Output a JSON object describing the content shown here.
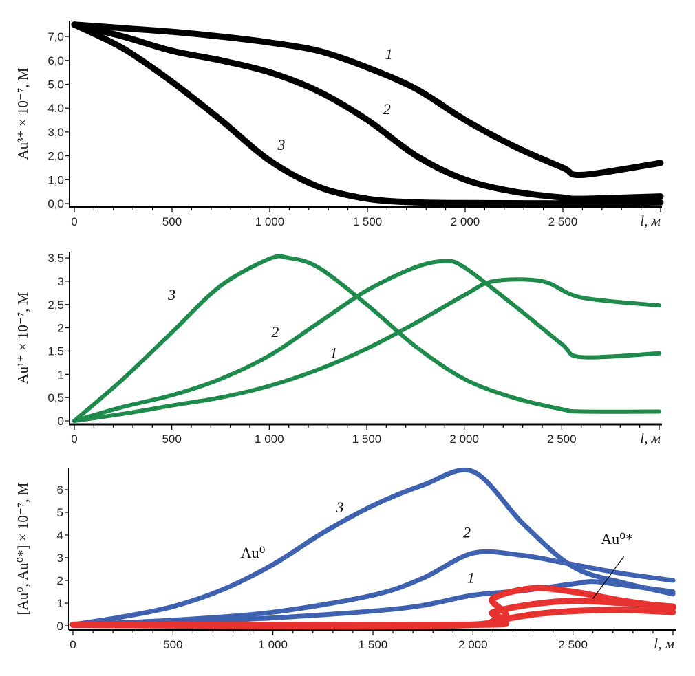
{
  "chart_data": [
    {
      "type": "line",
      "ylabel": "Au³⁺ × 10⁻⁷, М",
      "xlabel": "l, м",
      "xlim": [
        0,
        3000
      ],
      "ylim": [
        0,
        7.7
      ],
      "xticks": [
        0,
        500,
        1000,
        1500,
        2000,
        2500
      ],
      "xtick_labels": [
        "0",
        "500",
        "1 000",
        "1 500",
        "2 000",
        "2 500"
      ],
      "yticks": [
        0,
        1,
        2,
        3,
        4,
        5,
        6,
        7
      ],
      "ytick_labels": [
        "0,0",
        "1,0",
        "2,0",
        "3,0",
        "4,0",
        "5,0",
        "6,0",
        "7,0"
      ],
      "color": "#000000",
      "series": [
        {
          "label": "1",
          "points": [
            [
              0,
              7.5
            ],
            [
              250,
              7.35
            ],
            [
              500,
              7.2
            ],
            [
              750,
              7.0
            ],
            [
              1000,
              6.75
            ],
            [
              1250,
              6.4
            ],
            [
              1500,
              5.7
            ],
            [
              1750,
              4.8
            ],
            [
              2000,
              3.5
            ],
            [
              2250,
              2.4
            ],
            [
              2500,
              1.5
            ],
            [
              2600,
              1.2
            ],
            [
              3000,
              1.7
            ]
          ]
        },
        {
          "label": "2",
          "points": [
            [
              0,
              7.5
            ],
            [
              250,
              7.0
            ],
            [
              500,
              6.4
            ],
            [
              750,
              6.0
            ],
            [
              1000,
              5.5
            ],
            [
              1250,
              4.7
            ],
            [
              1500,
              3.5
            ],
            [
              1750,
              2.0
            ],
            [
              2000,
              1.0
            ],
            [
              2250,
              0.5
            ],
            [
              2500,
              0.25
            ],
            [
              2600,
              0.2
            ],
            [
              3000,
              0.3
            ]
          ]
        },
        {
          "label": "3",
          "points": [
            [
              0,
              7.5
            ],
            [
              250,
              6.5
            ],
            [
              500,
              5.1
            ],
            [
              750,
              3.5
            ],
            [
              1000,
              1.8
            ],
            [
              1250,
              0.7
            ],
            [
              1500,
              0.2
            ],
            [
              1750,
              0.05
            ],
            [
              2000,
              0.02
            ],
            [
              2500,
              0.01
            ],
            [
              3000,
              0.05
            ]
          ]
        }
      ],
      "annotations": [
        {
          "text": "1",
          "x": 1610,
          "y": 6.05
        },
        {
          "text": "2",
          "x": 1600,
          "y": 3.75
        },
        {
          "text": "3",
          "x": 1060,
          "y": 2.25
        }
      ]
    },
    {
      "type": "line",
      "ylabel": "Au¹⁺ × 10⁻⁷, М",
      "xlabel": "l, м",
      "xlim": [
        0,
        3000
      ],
      "ylim": [
        0,
        3.6
      ],
      "xticks": [
        0,
        500,
        1000,
        1500,
        2000,
        2500
      ],
      "xtick_labels": [
        "0",
        "500",
        "1 000",
        "1 500",
        "2 000",
        "2 500"
      ],
      "yticks": [
        0,
        0.5,
        1,
        1.5,
        2,
        2.5,
        3,
        3.5
      ],
      "ytick_labels": [
        "0",
        "0,5",
        "1",
        "1,5",
        "2",
        "2,5",
        "3",
        "3,5"
      ],
      "color": "#1e8a4c",
      "series": [
        {
          "label": "1",
          "points": [
            [
              0,
              0
            ],
            [
              250,
              0.15
            ],
            [
              500,
              0.33
            ],
            [
              750,
              0.5
            ],
            [
              1000,
              0.75
            ],
            [
              1250,
              1.1
            ],
            [
              1500,
              1.55
            ],
            [
              1750,
              2.1
            ],
            [
              2000,
              2.7
            ],
            [
              2150,
              3.0
            ],
            [
              2400,
              3.0
            ],
            [
              2600,
              2.65
            ],
            [
              3000,
              2.48
            ]
          ]
        },
        {
          "label": "2",
          "points": [
            [
              0,
              0
            ],
            [
              250,
              0.3
            ],
            [
              500,
              0.55
            ],
            [
              750,
              0.9
            ],
            [
              1000,
              1.4
            ],
            [
              1250,
              2.1
            ],
            [
              1500,
              2.8
            ],
            [
              1750,
              3.3
            ],
            [
              1900,
              3.43
            ],
            [
              2000,
              3.3
            ],
            [
              2250,
              2.5
            ],
            [
              2500,
              1.65
            ],
            [
              2600,
              1.37
            ],
            [
              3000,
              1.45
            ]
          ]
        },
        {
          "label": "3",
          "points": [
            [
              0,
              0
            ],
            [
              250,
              0.9
            ],
            [
              500,
              1.9
            ],
            [
              750,
              2.9
            ],
            [
              1000,
              3.48
            ],
            [
              1100,
              3.5
            ],
            [
              1250,
              3.3
            ],
            [
              1500,
              2.5
            ],
            [
              1750,
              1.6
            ],
            [
              2000,
              0.9
            ],
            [
              2250,
              0.5
            ],
            [
              2500,
              0.25
            ],
            [
              2600,
              0.2
            ],
            [
              3000,
              0.2
            ]
          ]
        }
      ],
      "annotations": [
        {
          "text": "1",
          "x": 1330,
          "y": 1.35
        },
        {
          "text": "2",
          "x": 1030,
          "y": 1.8
        },
        {
          "text": "3",
          "x": 500,
          "y": 2.6
        }
      ]
    },
    {
      "type": "line",
      "ylabel": "[Au⁰, Au⁰*] × 10⁻⁷, М",
      "xlabel": "l, м",
      "xlim": [
        0,
        3000
      ],
      "ylim": [
        0,
        6.9
      ],
      "xticks": [
        0,
        500,
        1000,
        1500,
        2000,
        2500
      ],
      "xtick_labels": [
        "0",
        "500",
        "1 000",
        "1 500",
        "2 000",
        "2 500"
      ],
      "yticks": [
        0,
        1,
        2,
        3,
        4,
        5,
        6
      ],
      "ytick_labels": [
        "0",
        "1",
        "2",
        "3",
        "4",
        "5",
        "6"
      ],
      "color": "#3f62b0",
      "color_secondary": "#e8322f",
      "series": [
        {
          "label": "1",
          "group": "Au⁰",
          "points": [
            [
              0,
              0.05
            ],
            [
              500,
              0.15
            ],
            [
              1000,
              0.35
            ],
            [
              1500,
              0.65
            ],
            [
              1750,
              0.9
            ],
            [
              2000,
              1.35
            ],
            [
              2250,
              1.55
            ],
            [
              2500,
              1.85
            ],
            [
              2600,
              1.95
            ],
            [
              2750,
              1.8
            ],
            [
              3000,
              1.5
            ]
          ]
        },
        {
          "label": "2",
          "group": "Au⁰",
          "points": [
            [
              0,
              0.05
            ],
            [
              500,
              0.25
            ],
            [
              1000,
              0.6
            ],
            [
              1500,
              1.35
            ],
            [
              1750,
              2.1
            ],
            [
              2000,
              3.2
            ],
            [
              2250,
              3.1
            ],
            [
              2500,
              2.7
            ],
            [
              2750,
              2.3
            ],
            [
              3000,
              2.0
            ]
          ]
        },
        {
          "label": "3",
          "group": "Au⁰",
          "points": [
            [
              0,
              0.05
            ],
            [
              250,
              0.4
            ],
            [
              500,
              0.85
            ],
            [
              750,
              1.6
            ],
            [
              1000,
              2.7
            ],
            [
              1250,
              4.1
            ],
            [
              1500,
              5.3
            ],
            [
              1750,
              6.2
            ],
            [
              2000,
              6.8
            ],
            [
              2250,
              4.5
            ],
            [
              2500,
              2.6
            ],
            [
              2750,
              1.9
            ],
            [
              3000,
              1.4
            ]
          ]
        },
        {
          "group": "Au⁰*",
          "points": [
            [
              0,
              0.05
            ],
            [
              2000,
              0.05
            ],
            [
              2100,
              1.2
            ],
            [
              2300,
              1.65
            ],
            [
              2500,
              1.5
            ],
            [
              2750,
              1.1
            ],
            [
              3000,
              0.8
            ]
          ]
        },
        {
          "group": "Au⁰*",
          "points": [
            [
              0,
              0.05
            ],
            [
              2000,
              0.05
            ],
            [
              2100,
              0.6
            ],
            [
              2300,
              0.95
            ],
            [
              2500,
              1.1
            ],
            [
              2750,
              1.0
            ],
            [
              3000,
              0.85
            ]
          ]
        },
        {
          "group": "Au⁰*",
          "points": [
            [
              0,
              0.05
            ],
            [
              2000,
              0.05
            ],
            [
              2100,
              0.2
            ],
            [
              2300,
              0.5
            ],
            [
              2500,
              0.65
            ],
            [
              2750,
              0.7
            ],
            [
              3000,
              0.6
            ]
          ]
        }
      ],
      "annotations": [
        {
          "text": "1",
          "x": 1990,
          "y": 1.9
        },
        {
          "text": "2",
          "x": 1970,
          "y": 3.9
        },
        {
          "text": "3",
          "x": 1335,
          "y": 5.0
        },
        {
          "text": "Au⁰",
          "x": 900,
          "y": 3.0,
          "upright": true
        },
        {
          "text": "Au⁰*",
          "x": 2720,
          "y": 3.6,
          "upright": true,
          "leader_to": [
            2600,
            1.2
          ]
        }
      ]
    }
  ]
}
